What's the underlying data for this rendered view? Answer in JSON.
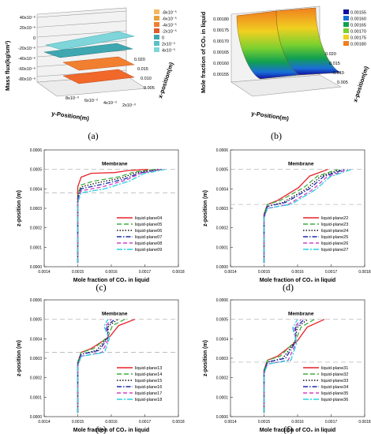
{
  "panels": {
    "a": {
      "label": "(a)",
      "type": "3d-surface",
      "zlabel": "Mass flux(kg/sm²)",
      "xlabel": "x-position(m)",
      "ylabel": "y-Position(m)",
      "z_ticks": [
        "40x10⁻⁶",
        "20x10⁻⁶",
        "0",
        "-20x10⁻⁶",
        "-40x10⁻⁶",
        "-60x10⁻⁶",
        "-80x10⁻⁶"
      ],
      "x_ticks": [
        "0.020",
        "0.015",
        "0.010",
        "0.005"
      ],
      "y_ticks": [
        "8x10⁻³",
        "6x10⁻³",
        "4x10⁻³",
        "2x10⁻³"
      ],
      "legend": [
        {
          "label": "-8x10⁻⁵",
          "color": "#f4b860"
        },
        {
          "label": "-6x10⁻⁵",
          "color": "#e8a040"
        },
        {
          "label": "-4x10⁻⁵",
          "color": "#f08030"
        },
        {
          "label": "-2x10⁻⁵",
          "color": "#e05a2a"
        },
        {
          "label": "0",
          "color": "#3fa7b0"
        },
        {
          "label": "2x10⁻⁵",
          "color": "#59c1c8"
        },
        {
          "label": "4x10⁻⁵",
          "color": "#7fd6da"
        }
      ]
    },
    "b": {
      "label": "(b)",
      "type": "3d-surface",
      "zlabel": "Mole fraction of CO₂ in liquid",
      "xlabel": "x-position(m)",
      "ylabel": "y-Position(m)",
      "z_ticks": [
        "0.00180",
        "0.00175",
        "0.00170",
        "0.00165",
        "0.00160",
        "0.00155"
      ],
      "x_ticks": [
        "0.020",
        "0.015",
        "0.010",
        "0.005"
      ],
      "legend": [
        {
          "label": "0.00155",
          "color": "#1010a0"
        },
        {
          "label": "0.00160",
          "color": "#1a6fd8"
        },
        {
          "label": "0.00165",
          "color": "#10a050"
        },
        {
          "label": "0.00170",
          "color": "#7ad030"
        },
        {
          "label": "0.00175",
          "color": "#f0d020"
        },
        {
          "label": "0.00180",
          "color": "#f08020"
        }
      ]
    }
  },
  "line_panels": [
    {
      "label": "(c)",
      "membrane": "Membrane",
      "xlabel": "Mole fraction of CO₂ in liquid",
      "ylabel": "z-position (m)",
      "lower_dash": 0.00038,
      "series": [
        {
          "name": "liquid-plane04",
          "color": "#e8202a",
          "dash": "",
          "knee_z": 0.00047,
          "top_x": 0.00171
        },
        {
          "name": "liquid-plane05",
          "color": "#3fae3f",
          "dash": "6,3",
          "knee_z": 0.00043,
          "top_x": 0.00173
        },
        {
          "name": "liquid-plane06",
          "color": "#111111",
          "dash": "1.5,2",
          "knee_z": 0.00042,
          "top_x": 0.00174
        },
        {
          "name": "liquid-plane07",
          "color": "#1a2aa8",
          "dash": "6,2,1.5,2",
          "knee_z": 0.00041,
          "top_x": 0.00175
        },
        {
          "name": "liquid-plane08",
          "color": "#d040c8",
          "dash": "5,3",
          "knee_z": 0.0004,
          "top_x": 0.00175
        },
        {
          "name": "liquid-plane09",
          "color": "#28d0e0",
          "dash": "7,2,2,2",
          "knee_z": 0.00039,
          "top_x": 0.00176
        }
      ]
    },
    {
      "label": "(d)",
      "membrane": "Membrane",
      "xlabel": "Mole fraction of CO₂ in liquid",
      "ylabel": "z-position (m)",
      "lower_dash": 0.00032,
      "series": [
        {
          "name": "liquid-plane22",
          "color": "#e8202a",
          "dash": "",
          "knee_z": 0.00033,
          "top_x": 0.00169
        },
        {
          "name": "liquid-plane23",
          "color": "#3fae3f",
          "dash": "6,3",
          "knee_z": 0.00033,
          "top_x": 0.00172
        },
        {
          "name": "liquid-plane24",
          "color": "#111111",
          "dash": "1.5,2",
          "knee_z": 0.00032,
          "top_x": 0.00173
        },
        {
          "name": "liquid-plane25",
          "color": "#1a2aa8",
          "dash": "6,2,1.5,2",
          "knee_z": 0.00032,
          "top_x": 0.00174
        },
        {
          "name": "liquid-plane26",
          "color": "#d040c8",
          "dash": "5,3",
          "knee_z": 0.00031,
          "top_x": 0.00175
        },
        {
          "name": "liquid-plane27",
          "color": "#28d0e0",
          "dash": "7,2,2,2",
          "knee_z": 0.00031,
          "top_x": 0.00176
        }
      ]
    },
    {
      "label": "(e)",
      "membrane": "Membrane",
      "xlabel": "Mole fraction of CO₂ in liquid",
      "ylabel": "z-position (m)",
      "lower_dash": 0.00033,
      "series": [
        {
          "name": "liquid-plane13",
          "color": "#e8202a",
          "dash": "",
          "knee_z": 0.00034,
          "top_x": 0.00167
        },
        {
          "name": "liquid-plane14",
          "color": "#3fae3f",
          "dash": "6,3",
          "knee_z": 0.00034,
          "top_x": 0.00164
        },
        {
          "name": "liquid-plane15",
          "color": "#111111",
          "dash": "1.5,2",
          "knee_z": 0.00033,
          "top_x": 0.00162
        },
        {
          "name": "liquid-plane16",
          "color": "#1a2aa8",
          "dash": "6,2,1.5,2",
          "knee_z": 0.00033,
          "top_x": 0.00161
        },
        {
          "name": "liquid-plane17",
          "color": "#d040c8",
          "dash": "5,3",
          "knee_z": 0.00032,
          "top_x": 0.0016
        },
        {
          "name": "liquid-plane18",
          "color": "#28d0e0",
          "dash": "7,2,2,2",
          "knee_z": 0.00032,
          "top_x": 0.00159
        }
      ]
    },
    {
      "label": "(f)",
      "membrane": "Membrane",
      "xlabel": "Mole fraction of CO₂ in liquid",
      "ylabel": "z-position (m)",
      "lower_dash": 0.00028,
      "series": [
        {
          "name": "liquid-plane31",
          "color": "#e8202a",
          "dash": "",
          "knee_z": 0.0003,
          "top_x": 0.00168
        },
        {
          "name": "liquid-plane32",
          "color": "#3fae3f",
          "dash": "6,3",
          "knee_z": 0.0003,
          "top_x": 0.00165
        },
        {
          "name": "liquid-plane33",
          "color": "#111111",
          "dash": "1.5,2",
          "knee_z": 0.00029,
          "top_x": 0.00163
        },
        {
          "name": "liquid-plane34",
          "color": "#1a2aa8",
          "dash": "6,2,1.5,2",
          "knee_z": 0.00029,
          "top_x": 0.00162
        },
        {
          "name": "liquid-plane35",
          "color": "#d040c8",
          "dash": "5,3",
          "knee_z": 0.00028,
          "top_x": 0.00161
        },
        {
          "name": "liquid-plane36",
          "color": "#28d0e0",
          "dash": "7,2,2,2",
          "knee_z": 0.00028,
          "top_x": 0.0016
        }
      ]
    }
  ],
  "chart_data": [
    {
      "type": "line",
      "xlabel": "Mole fraction of CO₂ in liquid",
      "ylabel": "z-position (m)",
      "xlim": [
        0.0014,
        0.0018
      ],
      "ylim": [
        0,
        0.0006
      ],
      "x_ticks": [
        "0.0014",
        "0.0015",
        "0.0016",
        "0.0017",
        "0.0018"
      ],
      "y_ticks": [
        "0.0000",
        "0.0001",
        "0.0002",
        "0.0003",
        "0.0004",
        "0.0005",
        "0.0006"
      ],
      "annotation": "Membrane",
      "grid": false,
      "legend_position": "bottom-right"
    }
  ]
}
